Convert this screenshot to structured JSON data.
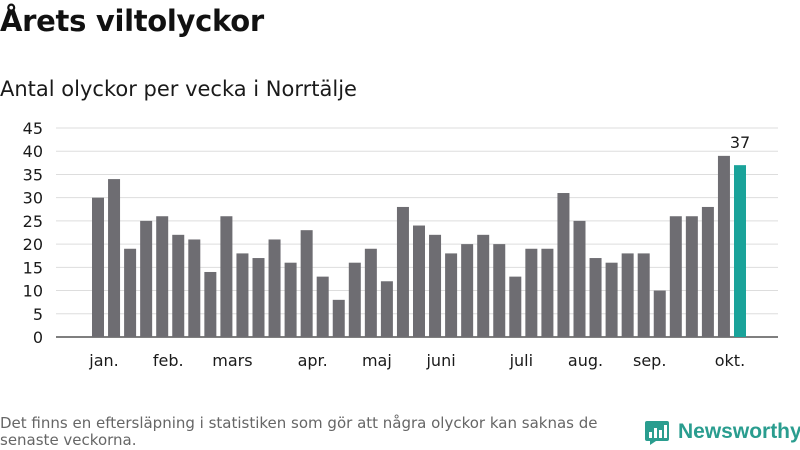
{
  "title": "Årets viltolyckor",
  "subtitle": "Antal olyckor per vecka i Norrtälje",
  "footnote": "Det finns en eftersläpning i statistiken som gör att några olyckor kan saknas de senaste veckorna.",
  "brand": {
    "name": "Newsworthy",
    "icon": "newsworthy-logo-icon",
    "color": "#2a9d8f"
  },
  "chart_data": {
    "type": "bar",
    "title": "Antal olyckor per vecka i Norrtälje",
    "xlabel": "",
    "ylabel": "",
    "ylim": [
      0,
      45
    ],
    "yticks": [
      0,
      5,
      10,
      15,
      20,
      25,
      30,
      35,
      40,
      45
    ],
    "grid": true,
    "values": [
      30,
      34,
      19,
      25,
      26,
      22,
      21,
      14,
      26,
      18,
      17,
      21,
      16,
      23,
      13,
      8,
      16,
      19,
      12,
      28,
      24,
      22,
      18,
      20,
      22,
      20,
      13,
      19,
      19,
      31,
      25,
      17,
      16,
      18,
      18,
      10,
      26,
      26,
      28,
      39,
      37
    ],
    "colors": {
      "default": "#6e6d72",
      "highlight": "#1aa39a",
      "grid": "#dddddd"
    },
    "highlight_index": 40,
    "data_labels": [
      {
        "index": 40,
        "text": "37"
      }
    ],
    "month_labels": [
      {
        "label": "jan.",
        "index": 0.5
      },
      {
        "label": "feb.",
        "index": 4.5
      },
      {
        "label": "mars",
        "index": 8.5
      },
      {
        "label": "apr.",
        "index": 13.5
      },
      {
        "label": "maj",
        "index": 17.5
      },
      {
        "label": "juni",
        "index": 21.5
      },
      {
        "label": "juli",
        "index": 26.5
      },
      {
        "label": "aug.",
        "index": 30.5
      },
      {
        "label": "sep.",
        "index": 34.5
      },
      {
        "label": "okt.",
        "index": 39.5
      }
    ]
  }
}
